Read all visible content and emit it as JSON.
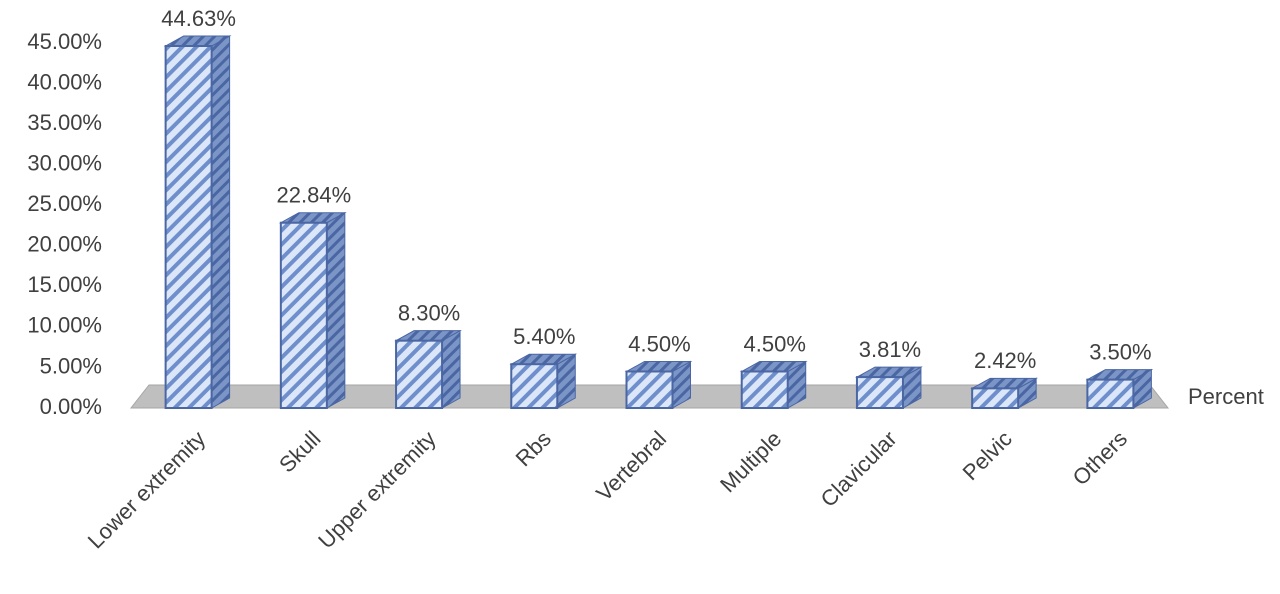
{
  "chart_data": {
    "type": "bar3d",
    "categories": [
      "Lower extremity",
      "Skull",
      "Upper extremity",
      "Rbs",
      "Vertebral",
      "Multiple",
      "Clavicular",
      "Pelvic",
      "Others"
    ],
    "series": [
      {
        "name": "Percent",
        "color": "#c9dcf5",
        "values": [
          44.63,
          22.84,
          8.3,
          5.4,
          4.5,
          4.5,
          3.81,
          2.42,
          3.5
        ],
        "value_labels": [
          "44.63%",
          "22.84%",
          "8.30%",
          "5.40%",
          "4.50%",
          "4.50%",
          "3.81%",
          "2.42%",
          "3.50%"
        ]
      }
    ],
    "ylim": [
      0,
      45
    ],
    "yticks": [
      {
        "value": 0,
        "label": "0.00%"
      },
      {
        "value": 5,
        "label": "5.00%"
      },
      {
        "value": 10,
        "label": "10.00%"
      },
      {
        "value": 15,
        "label": "15.00%"
      },
      {
        "value": 20,
        "label": "20.00%"
      },
      {
        "value": 25,
        "label": "25.00%"
      },
      {
        "value": 30,
        "label": "30.00%"
      },
      {
        "value": 35,
        "label": "35.00%"
      },
      {
        "value": 40,
        "label": "40.00%"
      },
      {
        "value": 45,
        "label": "45.00%"
      }
    ],
    "legend": "right"
  }
}
